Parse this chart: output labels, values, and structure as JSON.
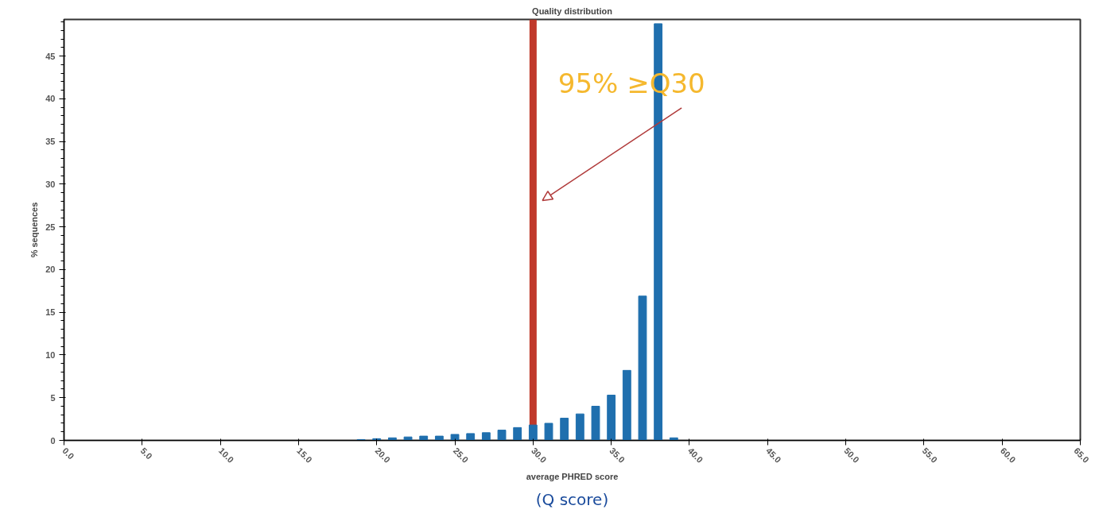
{
  "chart_data": {
    "type": "bar",
    "title": "Quality distribution",
    "xlabel": "average PHRED score",
    "ylabel": "% sequences",
    "x": [
      19,
      20,
      21,
      22,
      23,
      24,
      25,
      26,
      27,
      28,
      29,
      30,
      31,
      32,
      33,
      34,
      35,
      36,
      37,
      38,
      39
    ],
    "values": [
      0.1,
      0.2,
      0.3,
      0.4,
      0.5,
      0.5,
      0.7,
      0.8,
      0.9,
      1.2,
      1.5,
      1.8,
      2.0,
      2.6,
      3.1,
      4.0,
      5.3,
      8.2,
      16.9,
      48.8,
      0.3
    ],
    "color": "#1f6fae",
    "xlim": [
      0,
      65
    ],
    "xticks": [
      {
        "value": 0,
        "label": "0.0"
      },
      {
        "value": 5,
        "label": "5.0"
      },
      {
        "value": 10,
        "label": "10.0"
      },
      {
        "value": 15,
        "label": "15.0"
      },
      {
        "value": 20,
        "label": "20.0"
      },
      {
        "value": 25,
        "label": "25.0"
      },
      {
        "value": 30,
        "label": "30.0"
      },
      {
        "value": 35,
        "label": "35.0"
      },
      {
        "value": 40,
        "label": "40.0"
      },
      {
        "value": 45,
        "label": "45.0"
      },
      {
        "value": 50,
        "label": "50.0"
      },
      {
        "value": 55,
        "label": "55.0"
      },
      {
        "value": 60,
        "label": "60.0"
      },
      {
        "value": 65,
        "label": "65.0"
      }
    ],
    "ylim": [
      0,
      49.3
    ],
    "yticks": [
      0,
      5,
      10,
      15,
      20,
      25,
      30,
      35,
      40,
      45
    ],
    "ref_lines": [
      {
        "axis": "x",
        "value": 30,
        "label": null,
        "color": "#c0392b"
      }
    ],
    "annotations": [
      "95% ≥Q30",
      "(Q score)"
    ],
    "grid": false
  }
}
